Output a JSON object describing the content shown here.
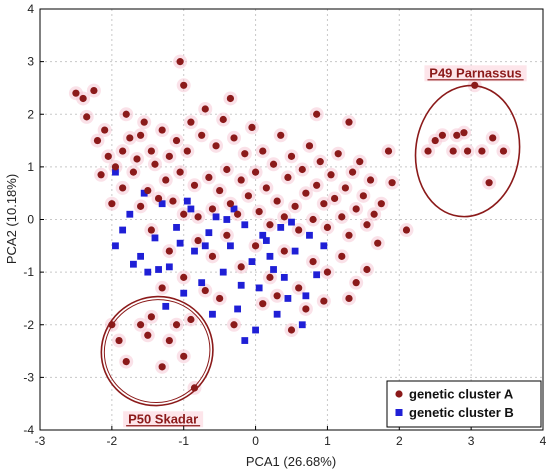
{
  "chart_data": {
    "type": "scatter",
    "xlabel": "PCA1 (26.68%)",
    "ylabel": "PCA2 (10.18%)",
    "xlim": [
      -3,
      4
    ],
    "ylim": [
      -4,
      4
    ],
    "xticks": [
      "-3",
      "-2",
      "-1",
      "0",
      "1",
      "2",
      "3",
      "4"
    ],
    "yticks": [
      "-4",
      "-3",
      "-2",
      "-1",
      "0",
      "1",
      "2",
      "3",
      "4"
    ],
    "grid": true,
    "legend_position": "bottom-right",
    "colors": {
      "cluster_a": "#8b1a1a",
      "cluster_b": "#1f1fd6",
      "annotation": "#8b1a1a"
    },
    "series": [
      {
        "name": "genetic cluster A",
        "marker": "circle",
        "points": [
          [
            -2.5,
            2.4
          ],
          [
            -2.4,
            2.3
          ],
          [
            -2.35,
            1.95
          ],
          [
            -2.25,
            2.45
          ],
          [
            -2.2,
            1.5
          ],
          [
            -2.1,
            1.7
          ],
          [
            -2.05,
            1.2
          ],
          [
            -1.95,
            1.0
          ],
          [
            -1.85,
            1.3
          ],
          [
            -1.8,
            2.0
          ],
          [
            -1.75,
            1.55
          ],
          [
            -1.7,
            0.9
          ],
          [
            -1.65,
            1.15
          ],
          [
            -1.6,
            1.6
          ],
          [
            -1.55,
            1.85
          ],
          [
            -1.5,
            0.55
          ],
          [
            -1.45,
            1.3
          ],
          [
            -1.4,
            1.05
          ],
          [
            -1.35,
            0.4
          ],
          [
            -1.3,
            1.7
          ],
          [
            -1.25,
            0.75
          ],
          [
            -1.2,
            1.2
          ],
          [
            -1.15,
            0.35
          ],
          [
            -1.1,
            1.5
          ],
          [
            -1.05,
            0.9
          ],
          [
            -1.0,
            0.1
          ],
          [
            -0.95,
            1.3
          ],
          [
            -0.9,
            1.85
          ],
          [
            -0.85,
            0.65
          ],
          [
            -0.8,
            0.05
          ],
          [
            -0.75,
            1.6
          ],
          [
            -0.7,
            2.1
          ],
          [
            -0.65,
            0.8
          ],
          [
            -0.6,
            0.2
          ],
          [
            -0.55,
            1.4
          ],
          [
            -0.5,
            0.55
          ],
          [
            -0.45,
            1.9
          ],
          [
            -0.4,
            0.95
          ],
          [
            -0.35,
            0.3
          ],
          [
            -0.3,
            1.55
          ],
          [
            -0.25,
            0.1
          ],
          [
            -0.2,
            0.75
          ],
          [
            -0.15,
            1.25
          ],
          [
            -0.1,
            0.45
          ],
          [
            -0.05,
            1.75
          ],
          [
            0.0,
            0.9
          ],
          [
            0.05,
            0.15
          ],
          [
            0.1,
            1.3
          ],
          [
            0.15,
            0.6
          ],
          [
            0.2,
            -0.1
          ],
          [
            0.25,
            1.05
          ],
          [
            0.3,
            0.35
          ],
          [
            0.35,
            1.6
          ],
          [
            0.4,
            0.05
          ],
          [
            0.45,
            0.8
          ],
          [
            0.5,
            1.2
          ],
          [
            0.55,
            0.25
          ],
          [
            0.6,
            -0.2
          ],
          [
            0.65,
            0.95
          ],
          [
            0.7,
            0.5
          ],
          [
            0.75,
            1.4
          ],
          [
            0.8,
            0.0
          ],
          [
            0.85,
            0.65
          ],
          [
            0.9,
            1.1
          ],
          [
            0.95,
            0.3
          ],
          [
            1.0,
            -0.15
          ],
          [
            1.05,
            0.85
          ],
          [
            1.1,
            0.4
          ],
          [
            1.15,
            1.25
          ],
          [
            1.2,
            0.05
          ],
          [
            1.25,
            0.6
          ],
          [
            1.3,
            -0.3
          ],
          [
            1.35,
            0.9
          ],
          [
            1.4,
            0.2
          ],
          [
            1.45,
            1.1
          ],
          [
            1.5,
            0.45
          ],
          [
            1.55,
            -0.1
          ],
          [
            1.6,
            0.75
          ],
          [
            1.65,
            0.1
          ],
          [
            1.7,
            -0.45
          ],
          [
            -0.8,
            -0.4
          ],
          [
            -0.6,
            -0.7
          ],
          [
            -0.4,
            -0.3
          ],
          [
            -0.2,
            -0.9
          ],
          [
            0.0,
            -0.5
          ],
          [
            0.2,
            -1.1
          ],
          [
            0.4,
            -0.6
          ],
          [
            0.6,
            -1.3
          ],
          [
            0.8,
            -0.8
          ],
          [
            1.0,
            -1.0
          ],
          [
            1.2,
            -0.7
          ],
          [
            1.4,
            -1.2
          ],
          [
            -1.2,
            -0.6
          ],
          [
            -1.0,
            -1.1
          ],
          [
            -0.5,
            -1.5
          ],
          [
            0.1,
            -1.6
          ],
          [
            0.7,
            -1.7
          ],
          [
            1.3,
            -1.5
          ],
          [
            -0.3,
            -2.0
          ],
          [
            0.5,
            -2.1
          ],
          [
            -0.9,
            -1.9
          ],
          [
            -1.45,
            -0.2
          ],
          [
            -1.6,
            0.25
          ],
          [
            -1.85,
            0.6
          ],
          [
            -2.0,
            0.3
          ],
          [
            -2.15,
            0.85
          ],
          [
            -1.3,
            -1.3
          ],
          [
            -0.7,
            -1.35
          ],
          [
            0.3,
            -1.45
          ],
          [
            0.95,
            -1.55
          ],
          [
            1.55,
            -0.95
          ],
          [
            1.75,
            0.3
          ],
          [
            1.9,
            0.7
          ],
          [
            2.1,
            -0.2
          ],
          [
            1.85,
            1.3
          ],
          [
            -0.35,
            2.3
          ],
          [
            -1.0,
            2.55
          ],
          [
            -1.05,
            3.0
          ],
          [
            0.85,
            2.0
          ],
          [
            1.3,
            1.85
          ],
          [
            -2.0,
            -2.0
          ],
          [
            -1.9,
            -2.3
          ],
          [
            -1.8,
            -2.7
          ],
          [
            -1.6,
            -2.0
          ],
          [
            -1.45,
            -1.85
          ],
          [
            -1.5,
            -2.2
          ],
          [
            -1.3,
            -2.8
          ],
          [
            -1.2,
            -2.3
          ],
          [
            -1.1,
            -2.0
          ],
          [
            -1.0,
            -2.6
          ],
          [
            -0.85,
            -3.2
          ],
          [
            2.4,
            1.3
          ],
          [
            2.5,
            1.5
          ],
          [
            2.6,
            1.6
          ],
          [
            2.75,
            1.3
          ],
          [
            2.8,
            1.6
          ],
          [
            2.9,
            1.65
          ],
          [
            2.95,
            1.3
          ],
          [
            3.05,
            2.55
          ],
          [
            3.15,
            1.3
          ],
          [
            3.25,
            0.7
          ],
          [
            3.3,
            1.55
          ],
          [
            3.45,
            1.3
          ]
        ]
      },
      {
        "name": "genetic cluster B",
        "marker": "square",
        "points": [
          [
            -1.95,
            -0.5
          ],
          [
            -1.85,
            -0.2
          ],
          [
            -1.75,
            0.1
          ],
          [
            -1.6,
            -0.7
          ],
          [
            -1.5,
            -1.0
          ],
          [
            -1.4,
            -0.35
          ],
          [
            -1.3,
            0.3
          ],
          [
            -1.2,
            -0.9
          ],
          [
            -1.1,
            -0.15
          ],
          [
            -1.0,
            -1.4
          ],
          [
            -0.9,
            0.2
          ],
          [
            -0.85,
            -0.6
          ],
          [
            -0.75,
            -1.2
          ],
          [
            -0.65,
            -0.25
          ],
          [
            -0.55,
            0.05
          ],
          [
            -0.45,
            -1.0
          ],
          [
            -0.35,
            -0.5
          ],
          [
            -0.25,
            -1.7
          ],
          [
            -0.15,
            -0.1
          ],
          [
            -0.05,
            -0.8
          ],
          [
            0.05,
            -1.3
          ],
          [
            0.15,
            -0.4
          ],
          [
            0.25,
            -0.95
          ],
          [
            0.35,
            -0.15
          ],
          [
            0.45,
            -1.5
          ],
          [
            0.55,
            -0.6
          ],
          [
            0.65,
            -2.0
          ],
          [
            0.75,
            -0.3
          ],
          [
            0.85,
            -1.05
          ],
          [
            0.95,
            -0.5
          ],
          [
            -1.55,
            0.5
          ],
          [
            -1.25,
            -1.65
          ],
          [
            -0.95,
            0.35
          ],
          [
            -0.6,
            -1.8
          ],
          [
            -0.3,
            0.2
          ],
          [
            0.0,
            -2.1
          ],
          [
            0.3,
            -1.8
          ],
          [
            0.5,
            -0.05
          ],
          [
            -0.15,
            -2.3
          ],
          [
            0.1,
            -0.3
          ],
          [
            -1.95,
            0.9
          ],
          [
            -1.35,
            -0.95
          ],
          [
            -0.7,
            -0.5
          ],
          [
            -0.4,
            0.0
          ],
          [
            -0.2,
            -1.25
          ],
          [
            0.2,
            -0.7
          ],
          [
            0.4,
            -1.1
          ],
          [
            -1.7,
            -0.85
          ],
          [
            -1.05,
            -0.45
          ],
          [
            0.7,
            -1.45
          ]
        ]
      }
    ],
    "annotations": [
      {
        "text": "P49 Parnassus",
        "center": [
          2.95,
          1.3
        ],
        "rx": 0.72,
        "ry": 1.25,
        "angle": 8
      },
      {
        "text": "P50 Skadar",
        "center": [
          -1.37,
          -2.5
        ],
        "rx": 0.78,
        "ry": 1.03,
        "angle": -22
      }
    ]
  }
}
